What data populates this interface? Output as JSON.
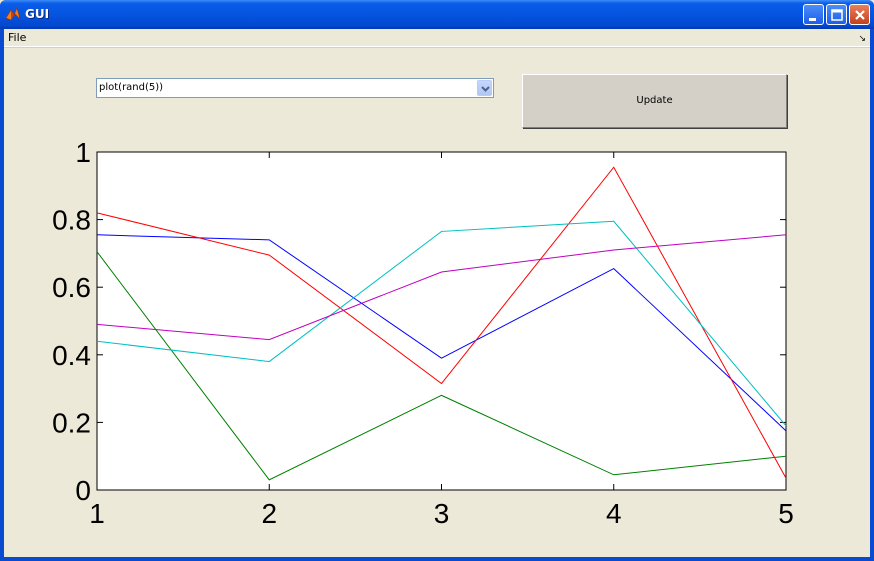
{
  "window": {
    "title": "GUI"
  },
  "menu": {
    "items": [
      "File"
    ]
  },
  "controls": {
    "popup_value": "plot(rand(5))",
    "update_label": "Update"
  },
  "chart_data": {
    "type": "line",
    "x": [
      1,
      2,
      3,
      4,
      5
    ],
    "xlim": [
      1,
      5
    ],
    "ylim": [
      0,
      1
    ],
    "x_ticks": [
      "1",
      "2",
      "3",
      "4",
      "5"
    ],
    "y_ticks": [
      "0",
      "0.2",
      "0.4",
      "0.6",
      "0.8",
      "1"
    ],
    "grid": false,
    "series": [
      {
        "color": "#0000ff",
        "values": [
          0.755,
          0.74,
          0.39,
          0.655,
          0.175
        ]
      },
      {
        "color": "#008000",
        "values": [
          0.705,
          0.03,
          0.28,
          0.045,
          0.1
        ]
      },
      {
        "color": "#ff0000",
        "values": [
          0.82,
          0.695,
          0.315,
          0.955,
          0.035
        ]
      },
      {
        "color": "#00bfbf",
        "values": [
          0.44,
          0.38,
          0.765,
          0.795,
          0.19
        ]
      },
      {
        "color": "#bf00bf",
        "values": [
          0.49,
          0.445,
          0.645,
          0.71,
          0.755
        ]
      }
    ]
  }
}
